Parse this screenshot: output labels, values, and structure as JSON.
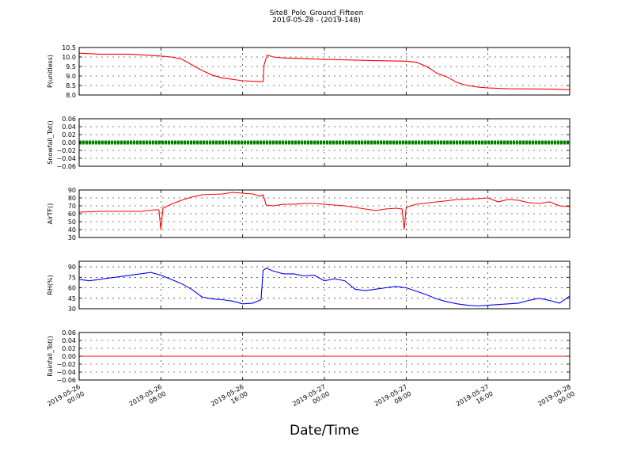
{
  "title": "Site8_Polo_Ground_Fifteen",
  "subtitle": "2019-05-28 - (2019-148)",
  "chart_data": {
    "xlabel": "Date/Time",
    "x_range": [
      "2019-05-26 00:00",
      "2019-05-28 00:00"
    ],
    "x_tick_labels": [
      [
        "2019-05-26",
        "00:00"
      ],
      [
        "2019-05-26",
        "08:00"
      ],
      [
        "2019-05-26",
        "16:00"
      ],
      [
        "2019-05-27",
        "00:00"
      ],
      [
        "2019-05-27",
        "08:00"
      ],
      [
        "2019-05-27",
        "16:00"
      ],
      [
        "2019-05-28",
        "00:00"
      ]
    ],
    "grid": true,
    "panels": [
      {
        "type": "line",
        "ylabel": "P(unitless)",
        "ylim": [
          8.0,
          10.5
        ],
        "yticks": [
          "8.0",
          "8.5",
          "9.0",
          "9.5",
          "10.0",
          "10.5"
        ],
        "color": "#ff0000",
        "marker": false,
        "x_hours": [
          0,
          2,
          5,
          8,
          9,
          10,
          11,
          12,
          13,
          14,
          16,
          17,
          18,
          18.1,
          18.4,
          19,
          20,
          22,
          24,
          26,
          28,
          30,
          32,
          33,
          34,
          35,
          36,
          37,
          38,
          39,
          40,
          42,
          44,
          46,
          48
        ],
        "values": [
          10.2,
          10.15,
          10.15,
          10.05,
          10.0,
          9.9,
          9.6,
          9.3,
          9.05,
          8.9,
          8.75,
          8.72,
          8.7,
          9.6,
          10.1,
          10.0,
          9.95,
          9.92,
          9.87,
          9.85,
          9.82,
          9.8,
          9.78,
          9.72,
          9.5,
          9.15,
          8.95,
          8.65,
          8.5,
          8.42,
          8.37,
          8.33,
          8.32,
          8.31,
          8.28
        ]
      },
      {
        "type": "line",
        "ylabel": "Snowfall_Tot()",
        "ylim": [
          -0.06,
          0.06
        ],
        "yticks": [
          "−0.06",
          "−0.04",
          "−0.02",
          "0.00",
          "0.02",
          "0.04",
          "0.06"
        ],
        "color": "#008000",
        "marker": true,
        "x_hours": [
          0,
          48
        ],
        "values": [
          0.0,
          0.0
        ]
      },
      {
        "type": "line",
        "ylabel": "AirTF()",
        "ylim": [
          30,
          90
        ],
        "yticks": [
          "30",
          "40",
          "50",
          "60",
          "70",
          "80",
          "90"
        ],
        "color": "#ff0000",
        "marker": false,
        "x_hours": [
          0,
          2,
          4,
          6,
          7.5,
          7.8,
          8.0,
          8.2,
          9,
          10,
          11,
          12,
          14,
          15,
          16,
          17,
          17.7,
          18.0,
          18.3,
          19,
          20,
          21,
          22,
          23,
          24,
          25,
          26,
          27,
          28,
          29,
          30,
          31,
          31.6,
          31.8,
          32.0,
          32.2,
          33,
          35,
          37,
          39,
          40,
          41,
          42,
          43,
          44,
          45,
          46,
          47,
          48
        ],
        "values": [
          62,
          63,
          63,
          63,
          65,
          65,
          40,
          67,
          72,
          77,
          81,
          84,
          85,
          87,
          86,
          85,
          82,
          84,
          71,
          70,
          72,
          72,
          73,
          73,
          72,
          71,
          70,
          68,
          66,
          64,
          66,
          67,
          66,
          40,
          67,
          69,
          72,
          75,
          78,
          79,
          80,
          75,
          78,
          77,
          74,
          73,
          75,
          70,
          69
        ]
      },
      {
        "type": "line",
        "ylabel": "RH(%)",
        "ylim": [
          30,
          98
        ],
        "yticks": [
          "30",
          "45",
          "60",
          "75",
          "90"
        ],
        "color": "#0000ff",
        "marker": false,
        "x_hours": [
          0,
          1,
          2,
          4,
          6,
          7,
          8,
          9,
          10,
          11,
          12,
          13,
          14,
          15,
          16,
          17,
          17.8,
          18.0,
          18.3,
          19,
          20,
          21,
          22,
          23,
          24,
          25,
          26,
          27,
          28,
          29,
          30,
          31,
          32,
          33,
          34,
          35,
          36,
          37,
          38,
          39,
          40,
          41,
          42,
          43,
          44,
          45,
          46,
          47,
          48
        ],
        "values": [
          72,
          70,
          72,
          76,
          80,
          82,
          78,
          72,
          66,
          58,
          47,
          44,
          43,
          41,
          37,
          38,
          43,
          85,
          88,
          84,
          80,
          80,
          77,
          78,
          70,
          73,
          70,
          58,
          56,
          58,
          60,
          62,
          60,
          55,
          50,
          44,
          40,
          37,
          35,
          34,
          35,
          36,
          37,
          38,
          42,
          45,
          42,
          38,
          48
        ]
      },
      {
        "type": "line",
        "ylabel": "Rainfall_Tot()",
        "ylim": [
          -0.06,
          0.06
        ],
        "yticks": [
          "−0.06",
          "−0.04",
          "−0.02",
          "0.00",
          "0.02",
          "0.04",
          "0.06"
        ],
        "color": "#ff0000",
        "marker": false,
        "x_hours": [
          0,
          48
        ],
        "values": [
          0.0,
          0.0
        ]
      }
    ]
  }
}
